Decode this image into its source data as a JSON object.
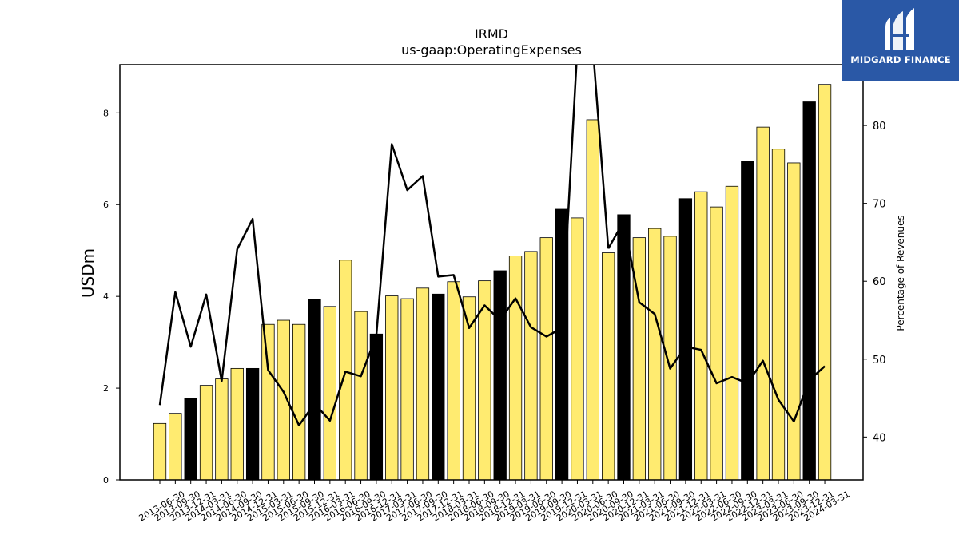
{
  "chart_data": {
    "type": "bar",
    "title": "IRMD",
    "subtitle": "us-gaap:OperatingExpenses",
    "ylabel": "USDm",
    "y2label": "Percentage of Revenues",
    "ylim": [
      0,
      9.05
    ],
    "y2lim": [
      34.5,
      87.8
    ],
    "yticks": [
      0,
      2,
      4,
      6,
      8
    ],
    "y2ticks": [
      40,
      50,
      60,
      70,
      80
    ],
    "categories": [
      "2013-06-30",
      "2013-09-30",
      "2013-12-31",
      "2014-03-31",
      "2014-06-30",
      "2014-09-30",
      "2014-12-31",
      "2015-03-31",
      "2015-06-30",
      "2015-09-30",
      "2015-12-31",
      "2016-03-31",
      "2016-06-30",
      "2016-09-30",
      "2016-12-31",
      "2017-03-31",
      "2017-06-30",
      "2017-09-30",
      "2017-12-31",
      "2018-03-31",
      "2018-06-30",
      "2018-09-30",
      "2018-12-31",
      "2019-03-31",
      "2019-06-30",
      "2019-09-30",
      "2019-12-31",
      "2020-03-31",
      "2020-06-30",
      "2020-09-30",
      "2020-12-31",
      "2021-03-31",
      "2021-06-30",
      "2021-09-30",
      "2021-12-31",
      "2022-03-31",
      "2022-06-30",
      "2022-09-30",
      "2022-12-31",
      "2023-03-31",
      "2023-06-30",
      "2023-09-30",
      "2023-12-31",
      "2024-03-31"
    ],
    "series": [
      {
        "type": "bar",
        "axis": "left",
        "values": [
          1.23,
          1.45,
          1.78,
          2.06,
          2.2,
          2.43,
          2.43,
          3.39,
          3.48,
          3.39,
          3.93,
          3.78,
          4.79,
          3.67,
          3.18,
          4.01,
          3.95,
          4.18,
          4.05,
          4.32,
          3.99,
          4.34,
          4.56,
          4.88,
          4.98,
          5.28,
          5.9,
          5.71,
          7.85,
          4.95,
          5.78,
          5.28,
          5.48,
          5.31,
          6.13,
          6.28,
          5.95,
          6.4,
          6.95,
          7.69,
          7.21,
          6.91,
          8.24,
          8.62
        ],
        "year_end_color": "#000000",
        "quarter_color": "#ffeb70"
      },
      {
        "type": "line",
        "axis": "right",
        "color": "#000000",
        "values": [
          44.1,
          58.6,
          51.6,
          58.3,
          47.2,
          64.1,
          68.0,
          48.6,
          45.8,
          41.5,
          44.3,
          42.1,
          48.4,
          47.8,
          53.0,
          77.6,
          71.7,
          73.5,
          60.6,
          60.8,
          54.0,
          56.9,
          55.0,
          57.8,
          54.1,
          52.9,
          54.0,
          null,
          null,
          64.2,
          67.7,
          57.3,
          55.8,
          48.8,
          51.6,
          51.2,
          46.9,
          47.7,
          46.9,
          49.8,
          44.8,
          42.0,
          47.3,
          49.1
        ],
        "offscale_points": [
          [
            26,
            54.0
          ],
          [
            27,
            90.0
          ],
          [
            28,
            90.0
          ],
          [
            29,
            64.2
          ]
        ]
      }
    ],
    "grid": false,
    "legend": "none"
  },
  "branding": {
    "logo_text": "MIDGARD FINANCE",
    "logo_bg": "#2a58a6"
  }
}
